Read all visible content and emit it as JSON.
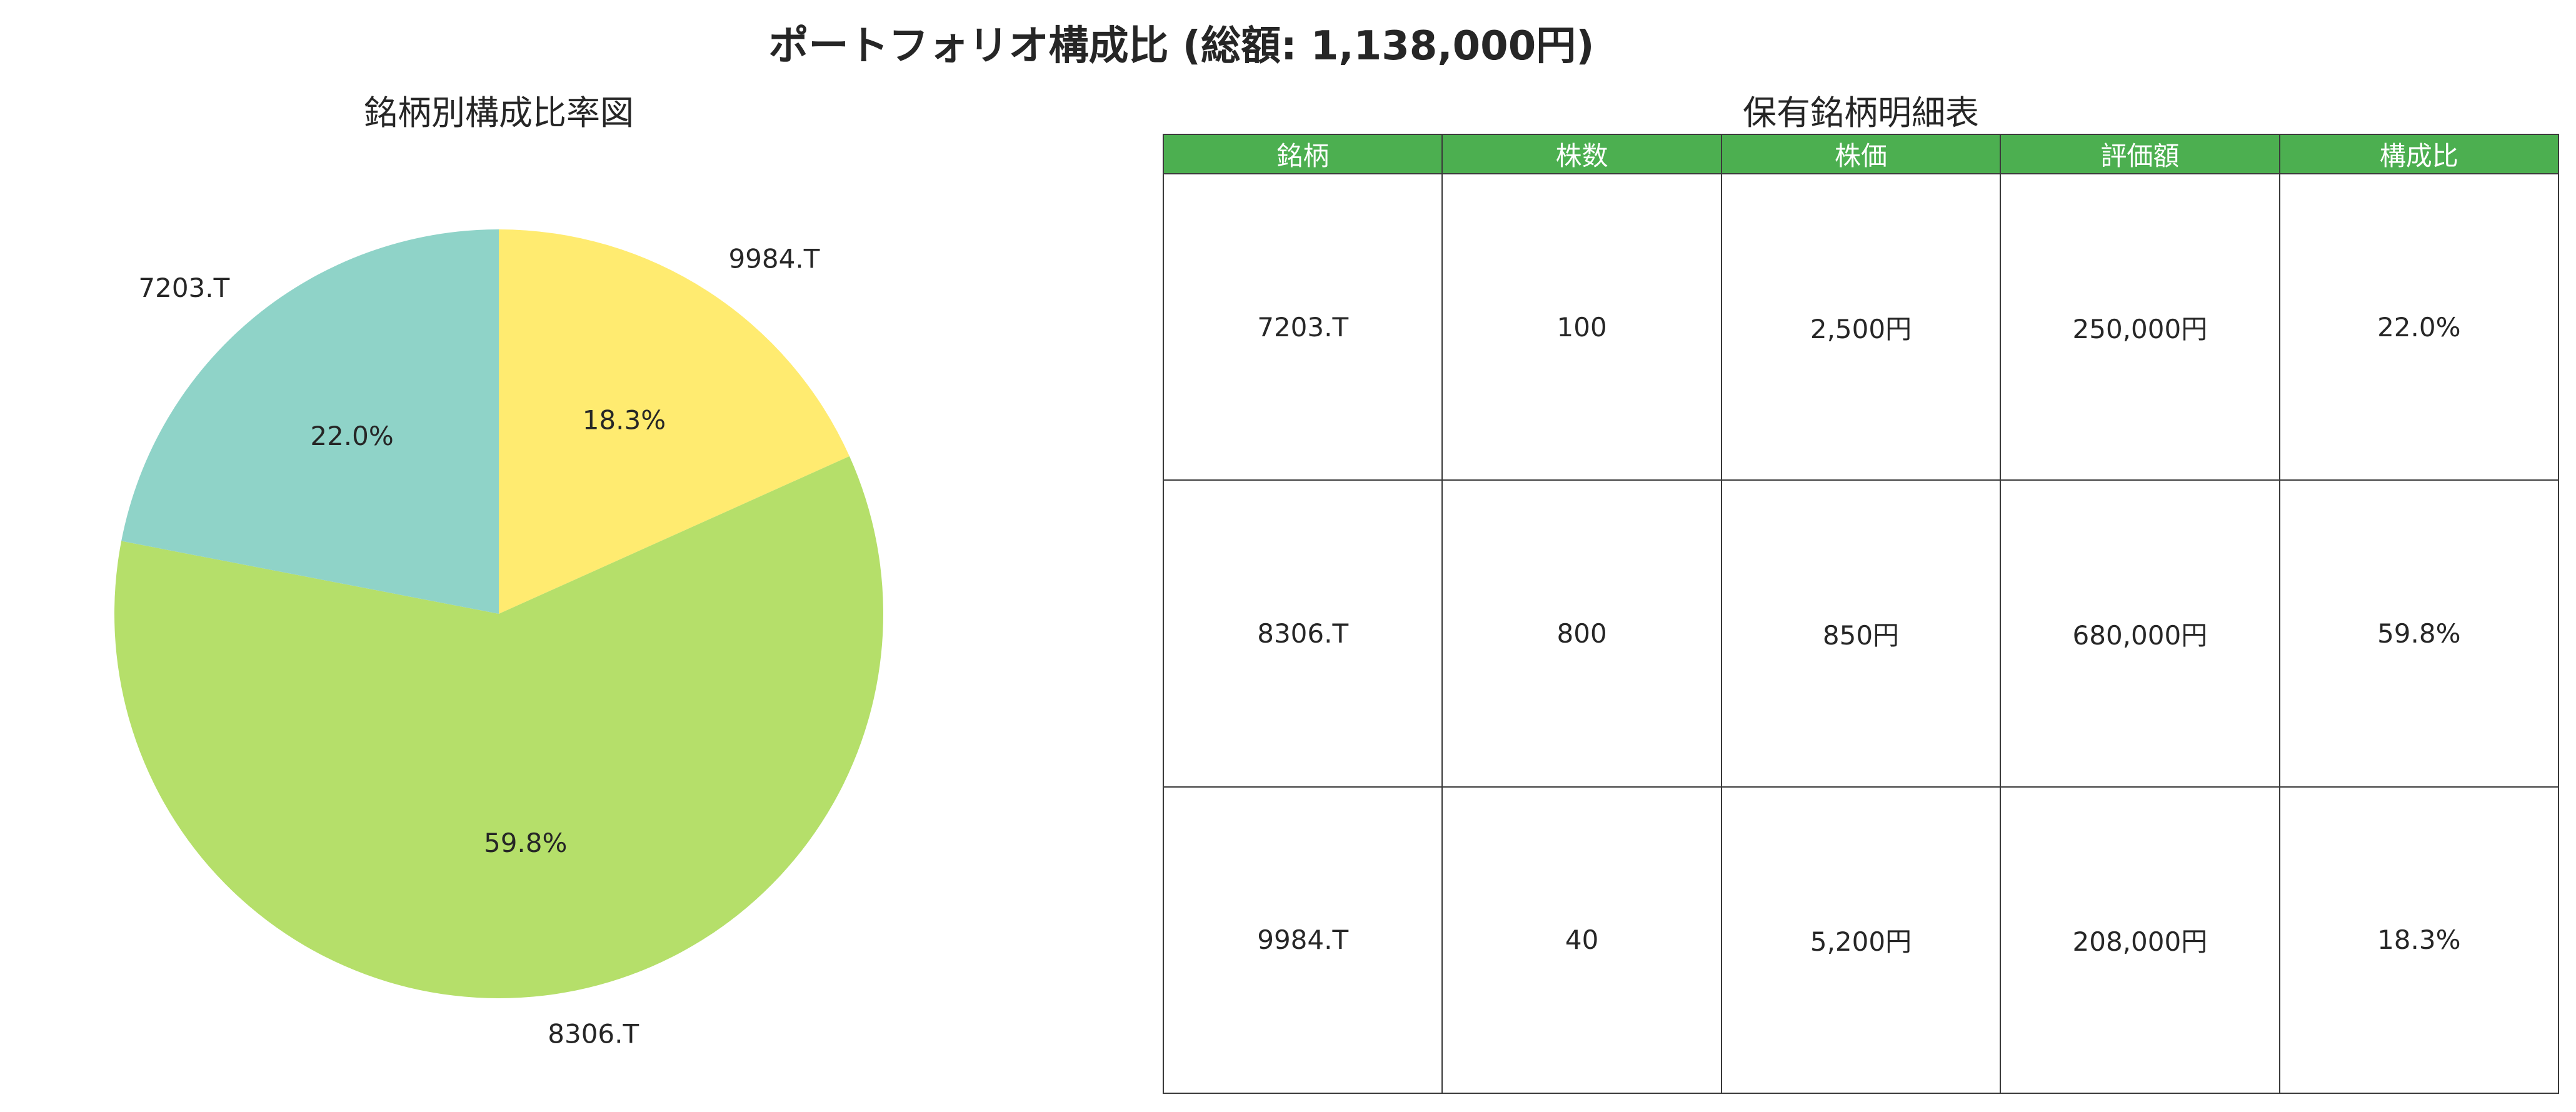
{
  "figure": {
    "title": "ポートフォリオ構成比 (総額: 1,138,000円)"
  },
  "pie": {
    "title": "銘柄別構成比率図"
  },
  "table": {
    "title": "保有銘柄明細表",
    "header_fill": "#4caf50",
    "columns": [
      "銘柄",
      "株数",
      "株価",
      "評価額",
      "構成比"
    ],
    "rows": [
      [
        "7203.T",
        "100",
        "2,500円",
        "250,000円",
        "22.0%"
      ],
      [
        "8306.T",
        "800",
        "850円",
        "680,000円",
        "59.8%"
      ],
      [
        "9984.T",
        "40",
        "5,200円",
        "208,000円",
        "18.3%"
      ]
    ]
  },
  "chart_data": [
    {
      "type": "pie",
      "title": "銘柄別構成比率図",
      "labels": [
        "9984.T",
        "8306.T",
        "7203.T"
      ],
      "values": [
        208000,
        680000,
        250000
      ],
      "percent_labels": [
        "18.3%",
        "59.8%",
        "22.0%"
      ],
      "colors": [
        "#ffeb70",
        "#b5df6a",
        "#8fd3c8"
      ],
      "start": "top",
      "direction": "clockwise"
    },
    {
      "type": "table",
      "title": "保有銘柄明細表",
      "columns": [
        "銘柄",
        "株数",
        "株価",
        "評価額",
        "構成比"
      ],
      "rows": [
        [
          "7203.T",
          100,
          2500,
          250000,
          22.0
        ],
        [
          "8306.T",
          800,
          850,
          680000,
          59.8
        ],
        [
          "9984.T",
          40,
          5200,
          208000,
          18.3
        ]
      ]
    }
  ]
}
